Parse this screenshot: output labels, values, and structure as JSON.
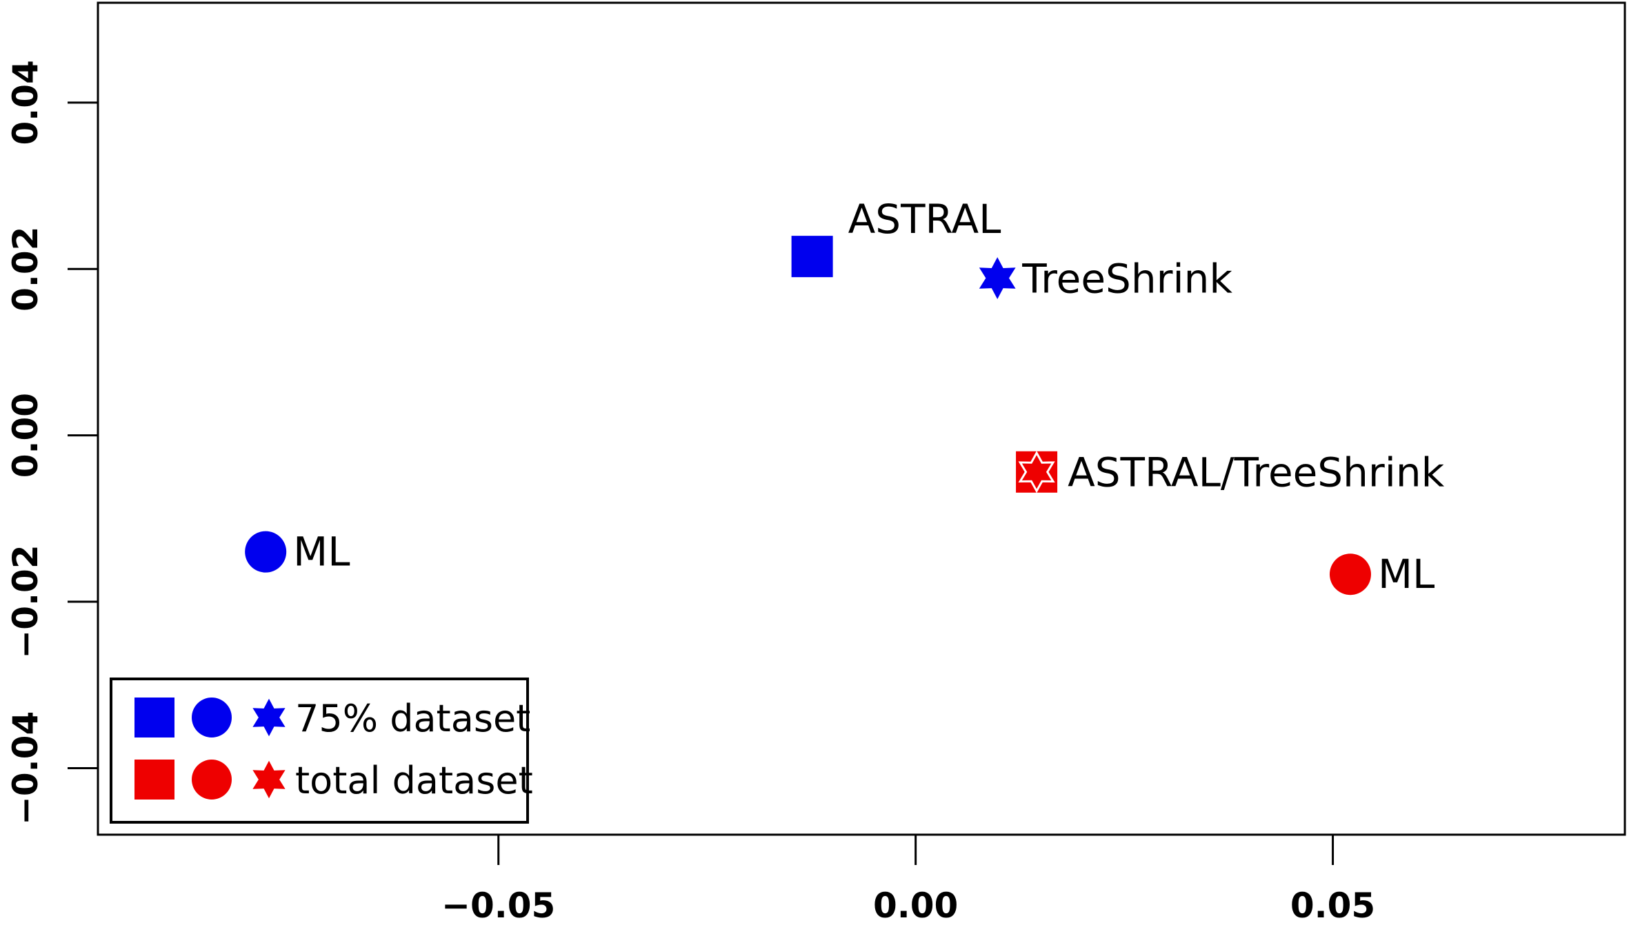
{
  "chart_data": {
    "type": "scatter",
    "title": "",
    "xlabel": "",
    "ylabel": "",
    "xlim": [
      -0.098,
      0.085
    ],
    "ylim": [
      -0.048,
      0.052
    ],
    "x_ticks": [
      -0.05,
      0.0,
      0.05
    ],
    "x_tick_labels": [
      "−0.05",
      "0.00",
      "0.05"
    ],
    "y_ticks": [
      -0.04,
      -0.02,
      0.0,
      0.02,
      0.04
    ],
    "y_tick_labels": [
      "−0.04",
      "−0.02",
      "0.00",
      "0.02",
      "0.04"
    ],
    "grid": false,
    "legend_position": "bottom-left",
    "colors": {
      "dataset_75": "#0000ee",
      "dataset_total": "#ee0000",
      "axis": "#000000"
    },
    "points": [
      {
        "x": -0.0124,
        "y": 0.0215,
        "marker": "square",
        "color": "#0000ee",
        "label": "ASTRAL",
        "label_position": "above-right"
      },
      {
        "x": 0.0098,
        "y": 0.0189,
        "marker": "star",
        "color": "#0000ee",
        "label": "TreeShrink",
        "label_position": "right"
      },
      {
        "x": 0.0145,
        "y": -0.0044,
        "marker": "square-star",
        "color": "#ee0000",
        "label": "ASTRAL/TreeShrink",
        "label_position": "right"
      },
      {
        "x": -0.0779,
        "y": -0.014,
        "marker": "circle",
        "color": "#0000ee",
        "label": "ML",
        "label_position": "right"
      },
      {
        "x": 0.0521,
        "y": -0.0167,
        "marker": "circle",
        "color": "#ee0000",
        "label": "ML",
        "label_position": "right"
      }
    ],
    "legend": [
      {
        "label": "75% dataset",
        "color": "#0000ee",
        "markers": [
          "square",
          "circle",
          "star"
        ]
      },
      {
        "label": "total dataset",
        "color": "#ee0000",
        "markers": [
          "square",
          "circle",
          "star"
        ]
      }
    ]
  }
}
